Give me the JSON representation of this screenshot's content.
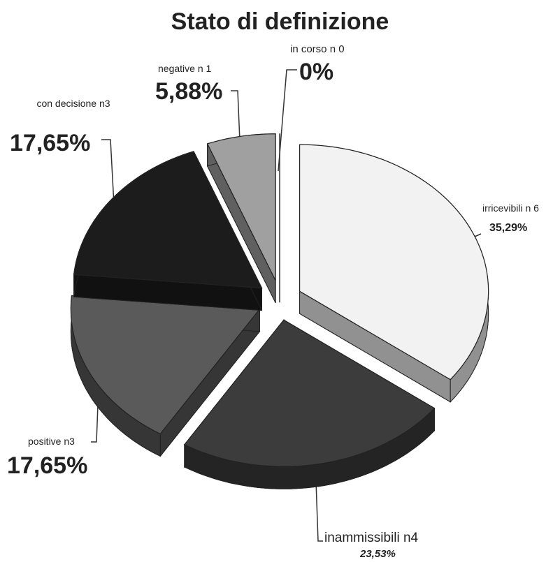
{
  "chart_data": {
    "type": "pie",
    "title": "Stato di definizione",
    "categories": [
      "irricevibili n 6",
      "inammissibili  n4",
      "positive n3",
      "con decisione n3",
      "negative n 1",
      "in corso n 0"
    ],
    "values": [
      35.29,
      23.53,
      17.65,
      17.65,
      5.88,
      0
    ],
    "value_labels": [
      "35,29%",
      "23,53%",
      "17,65%",
      "17,65%",
      "5,88%",
      "0%"
    ],
    "colors": [
      "#f2f2f2",
      "#3c3c3c",
      "#5a5a5a",
      "#1c1c1c",
      "#a0a0a0",
      "#ffffff"
    ]
  }
}
